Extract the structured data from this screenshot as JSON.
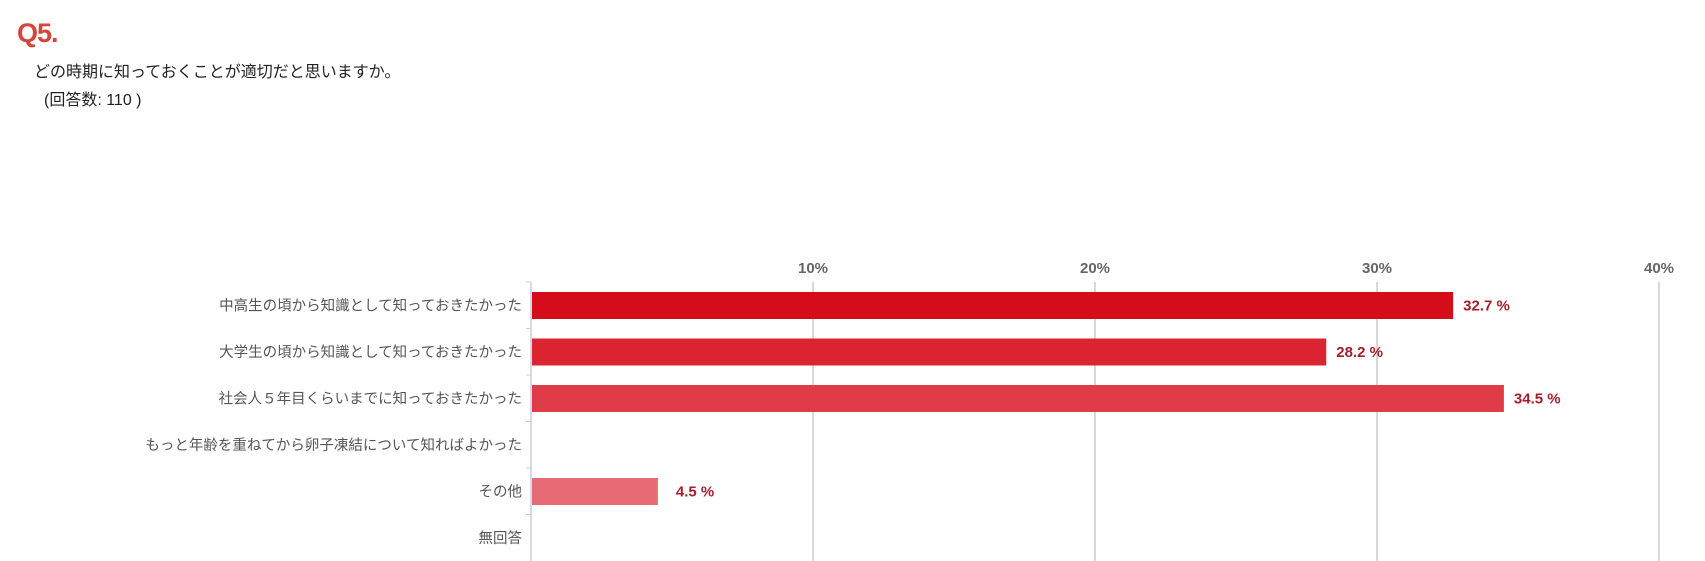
{
  "header": {
    "question_number": "Q5.",
    "question_text": "どの時期に知っておくことが適切だと思いますか。",
    "response_count": "(回答数: 110 )"
  },
  "chart_data": {
    "type": "bar",
    "orientation": "horizontal",
    "categories": [
      "中高生の頃から知識として知っておきたかった",
      "大学生の頃から知識として知っておきたかった",
      "社会人５年目くらいまでに知っておきたかった",
      "もっと年齢を重ねてから卵子凍結について知ればよかった",
      "その他",
      "無回答"
    ],
    "values": [
      32.7,
      28.2,
      34.5,
      null,
      4.5,
      null
    ],
    "data_labels": [
      "32.7 %",
      "28.2 %",
      "34.5 %",
      "",
      "4.5 %",
      ""
    ],
    "bar_colors": [
      "#d50d1b",
      "#db2432",
      "#e03c47",
      "#e24f59",
      "#e76b74",
      "#ec878e"
    ],
    "xlim": [
      0,
      40
    ],
    "x_ticks": [
      "10%",
      "20%",
      "30%",
      "40%"
    ],
    "x_tick_values": [
      10,
      20,
      30,
      40
    ],
    "x_axis_position": "top",
    "grid": true,
    "label_color": "#a51d2b"
  }
}
